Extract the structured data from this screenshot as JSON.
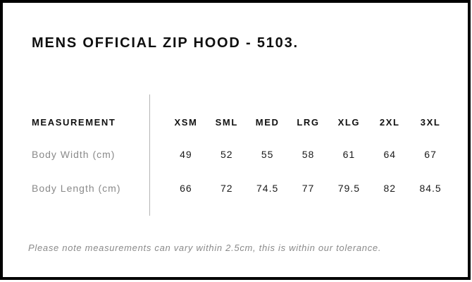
{
  "page": {
    "title": "MENS OFFICIAL ZIP HOOD - 5103.",
    "tolerance_note": "Please note measurements can vary within 2.5cm, this is within our tolerance."
  },
  "chart_data": {
    "type": "table",
    "columns": [
      "MEASUREMENT",
      "XSM",
      "SML",
      "MED",
      "LRG",
      "XLG",
      "2XL",
      "3XL"
    ],
    "rows": [
      {
        "label": "Body Width (cm)",
        "values": [
          49,
          52,
          55,
          58,
          61,
          64,
          67
        ]
      },
      {
        "label": "Body Length (cm)",
        "values": [
          66,
          72,
          74.5,
          77,
          79.5,
          82,
          84.5
        ]
      }
    ]
  },
  "colors": {
    "frame": "#000000",
    "heading_text": "#111111",
    "muted_text": "#8a8a8a",
    "divider": "#b5b5b5",
    "background": "#ffffff"
  }
}
